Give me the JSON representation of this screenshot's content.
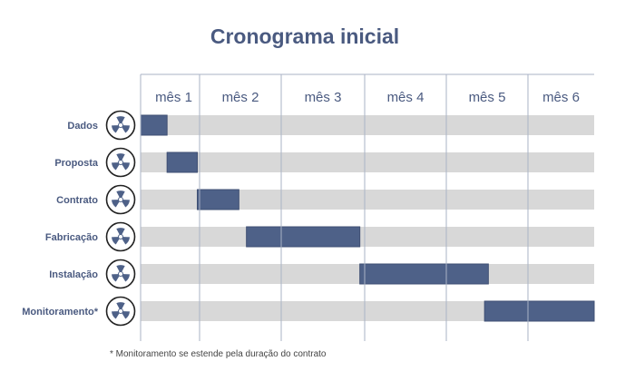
{
  "chart_data": {
    "type": "gantt",
    "title": "Cronograma inicial",
    "x_unit": "mês",
    "xlim": [
      0,
      6
    ],
    "columns": [
      "mês 1",
      "mês 2",
      "mês 3",
      "mês 4",
      "mês 5",
      "mês 6"
    ],
    "tasks": [
      {
        "label": "Dados",
        "start": 0.0,
        "end": 0.35
      },
      {
        "label": "Proposta",
        "start": 0.35,
        "end": 0.75
      },
      {
        "label": "Contrato",
        "start": 0.75,
        "end": 1.3
      },
      {
        "label": "Fabricação",
        "start": 1.4,
        "end": 2.9
      },
      {
        "label": "Instalação",
        "start": 2.9,
        "end": 4.6
      },
      {
        "label": "Monitoramento*",
        "start": 4.55,
        "end": 6.0
      }
    ],
    "footnote": "* Monitoramento se estende pela duração do contrato"
  },
  "colors": {
    "bar": "#4e6188",
    "track": "#d8d8d8",
    "grid": "#aab3c6",
    "label": "#4a5a80",
    "icon": "#4e6188"
  }
}
